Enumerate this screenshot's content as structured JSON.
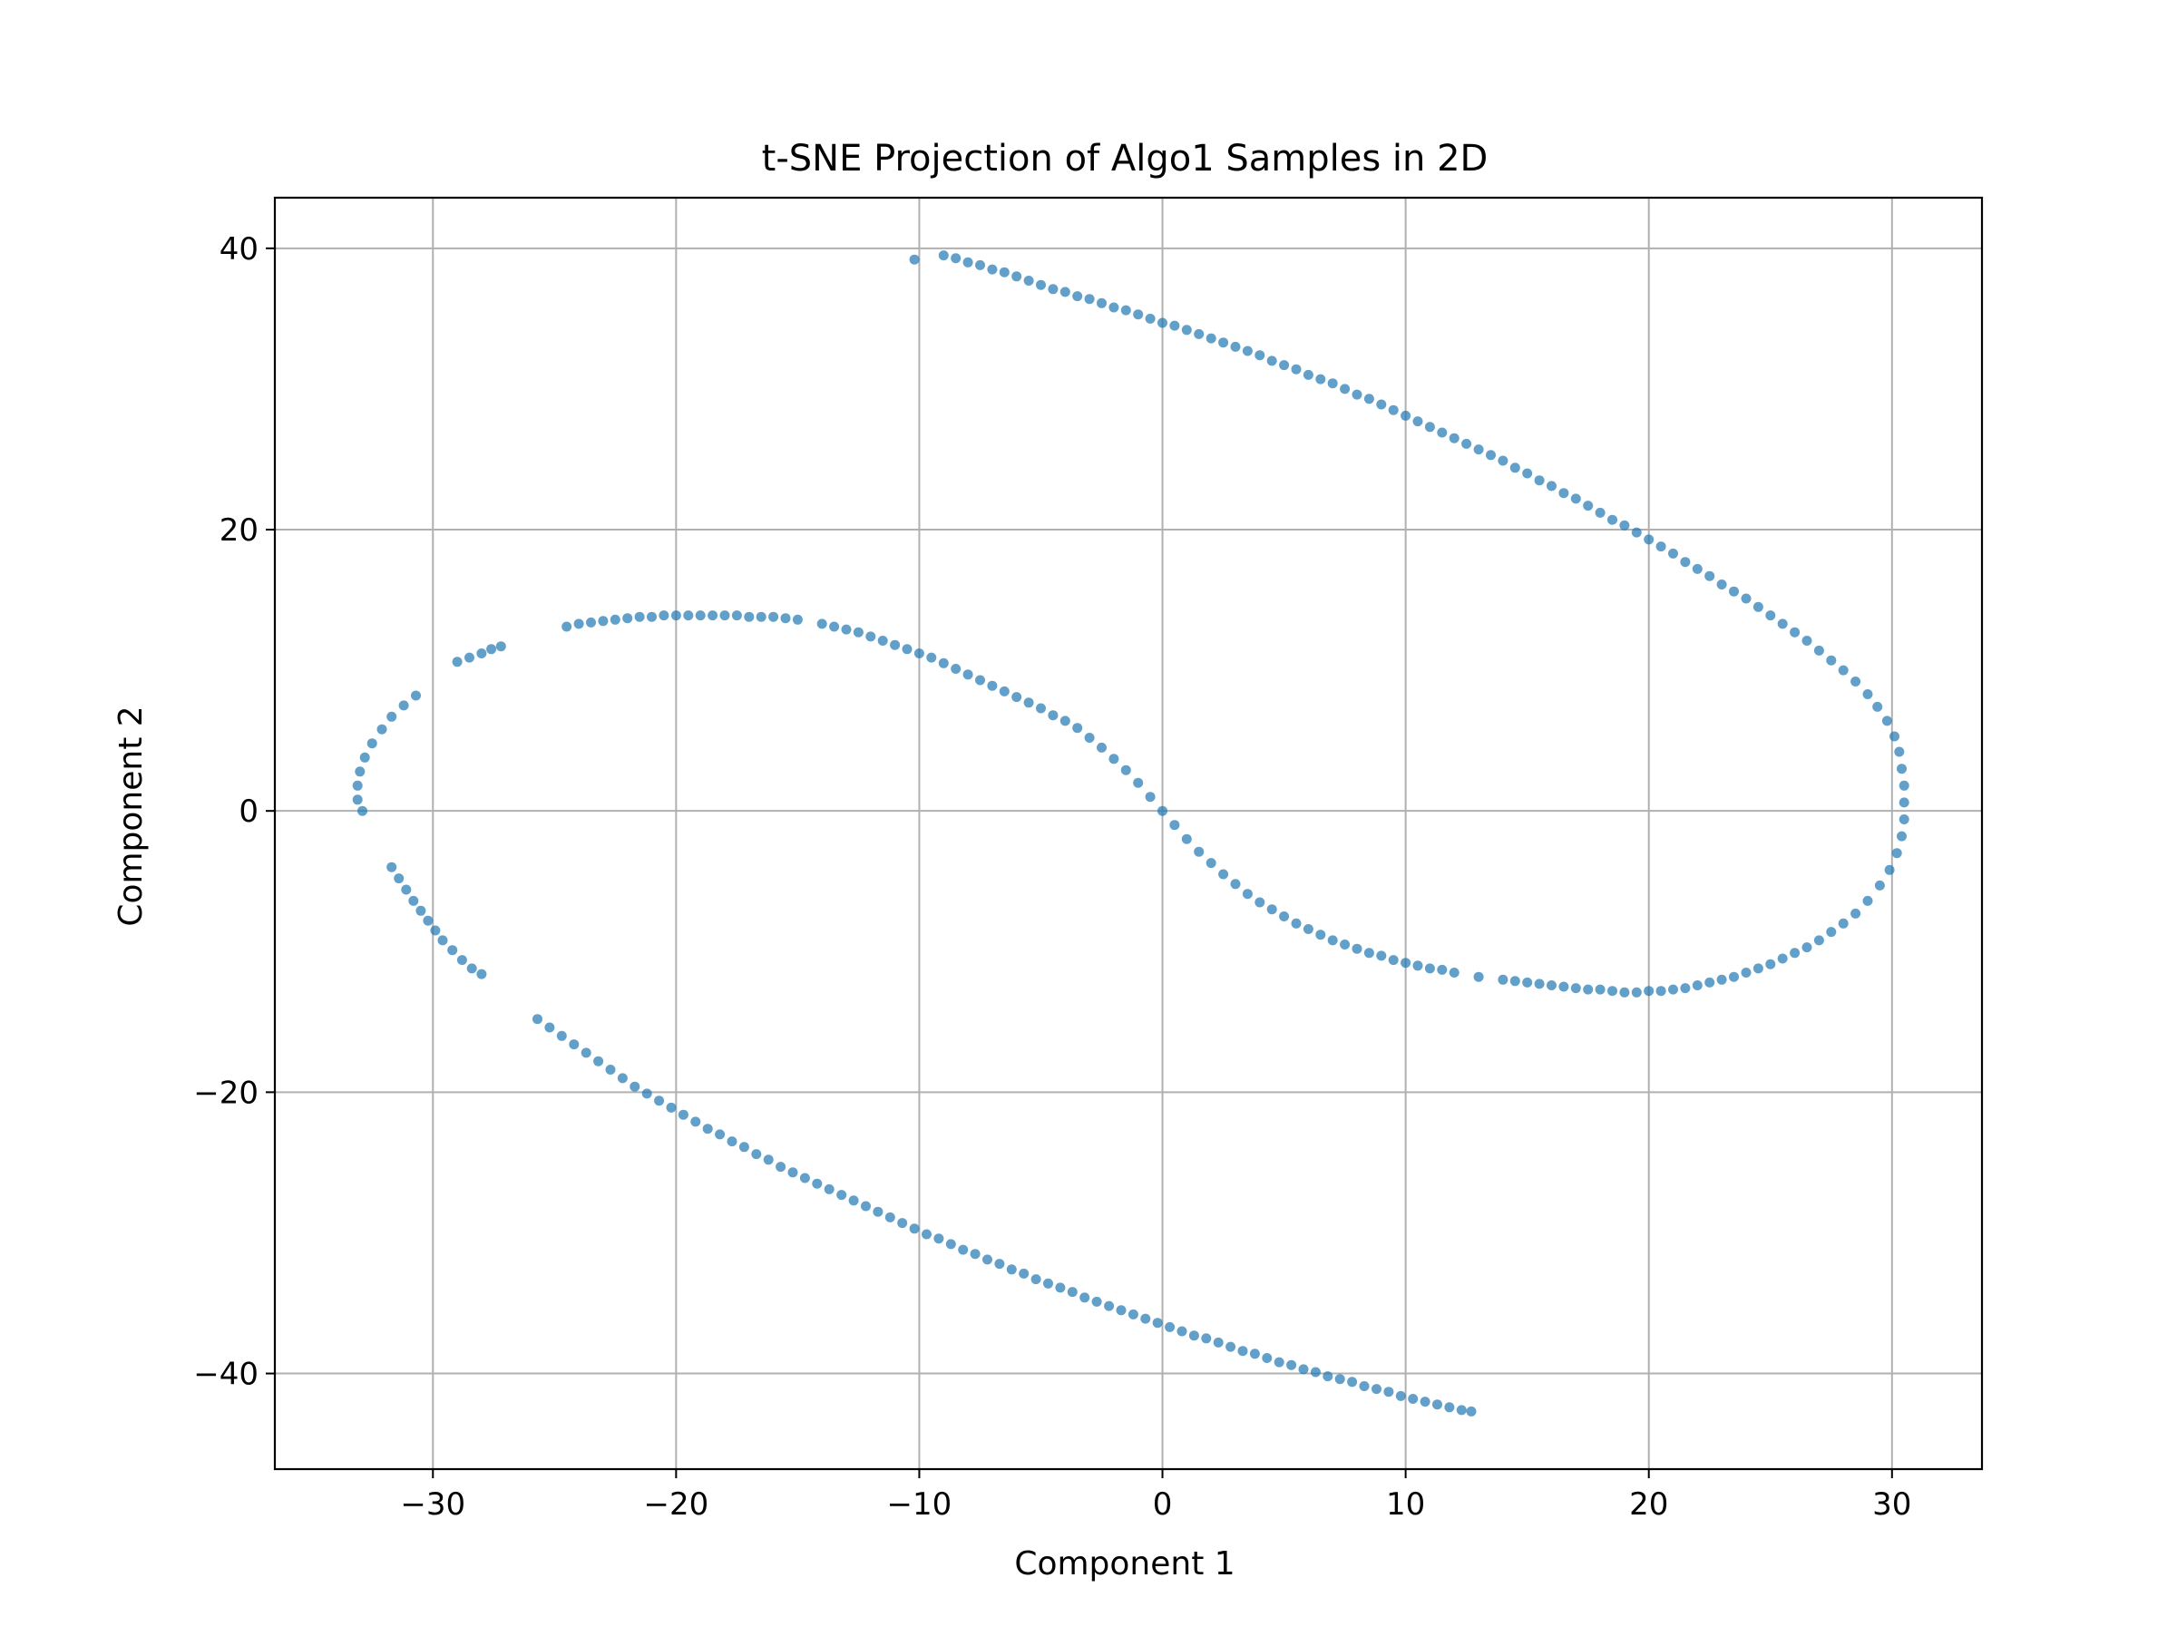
{
  "chart_data": {
    "type": "scatter",
    "title": "t-SNE Projection of Algo1 Samples in 2D",
    "xlabel": "Component 1",
    "ylabel": "Component 2",
    "xlim": [
      -36.5,
      33.7
    ],
    "ylim": [
      -46.8,
      43.6
    ],
    "xticks": [
      -30,
      -20,
      -10,
      0,
      10,
      20,
      30
    ],
    "yticks": [
      -40,
      -20,
      0,
      20,
      40
    ],
    "grid": true,
    "point_color": "#1f77b4",
    "point_alpha": 0.7,
    "series": [
      {
        "shape": "two spiral arms of a single point cloud",
        "points": [
          [
            -10.2,
            39.2
          ],
          [
            -9.0,
            39.5
          ],
          [
            -8.5,
            39.3
          ],
          [
            -8.0,
            39.0
          ],
          [
            -7.5,
            38.8
          ],
          [
            -7.0,
            38.5
          ],
          [
            -6.5,
            38.3
          ],
          [
            -6.0,
            38.0
          ],
          [
            -5.5,
            37.7
          ],
          [
            -5.0,
            37.4
          ],
          [
            -4.5,
            37.1
          ],
          [
            -4.0,
            36.9
          ],
          [
            -3.5,
            36.6
          ],
          [
            -3.0,
            36.4
          ],
          [
            -2.5,
            36.1
          ],
          [
            -2.0,
            35.8
          ],
          [
            -1.5,
            35.6
          ],
          [
            -1.0,
            35.3
          ],
          [
            -0.5,
            35.0
          ],
          [
            0.0,
            34.7
          ],
          [
            0.5,
            34.5
          ],
          [
            1.0,
            34.2
          ],
          [
            1.5,
            33.9
          ],
          [
            2.0,
            33.6
          ],
          [
            2.5,
            33.3
          ],
          [
            3.0,
            33.0
          ],
          [
            3.5,
            32.7
          ],
          [
            4.0,
            32.4
          ],
          [
            4.5,
            32.0
          ],
          [
            5.0,
            31.7
          ],
          [
            5.5,
            31.4
          ],
          [
            6.0,
            31.0
          ],
          [
            6.5,
            30.7
          ],
          [
            7.0,
            30.4
          ],
          [
            7.5,
            30.0
          ],
          [
            8.0,
            29.6
          ],
          [
            8.5,
            29.3
          ],
          [
            9.0,
            28.9
          ],
          [
            9.5,
            28.5
          ],
          [
            10.0,
            28.1
          ],
          [
            10.5,
            27.7
          ],
          [
            11.0,
            27.3
          ],
          [
            11.5,
            26.9
          ],
          [
            12.0,
            26.5
          ],
          [
            12.5,
            26.1
          ],
          [
            13.0,
            25.7
          ],
          [
            13.5,
            25.3
          ],
          [
            14.0,
            24.9
          ],
          [
            14.5,
            24.4
          ],
          [
            15.0,
            24.0
          ],
          [
            15.5,
            23.5
          ],
          [
            16.0,
            23.1
          ],
          [
            16.5,
            22.6
          ],
          [
            17.0,
            22.2
          ],
          [
            17.5,
            21.7
          ],
          [
            18.0,
            21.2
          ],
          [
            18.5,
            20.7
          ],
          [
            19.0,
            20.3
          ],
          [
            19.5,
            19.8
          ],
          [
            20.0,
            19.3
          ],
          [
            20.5,
            18.8
          ],
          [
            21.0,
            18.3
          ],
          [
            21.5,
            17.7
          ],
          [
            22.0,
            17.2
          ],
          [
            22.5,
            16.7
          ],
          [
            23.0,
            16.1
          ],
          [
            23.5,
            15.6
          ],
          [
            24.0,
            15.1
          ],
          [
            24.5,
            14.5
          ],
          [
            25.0,
            13.9
          ],
          [
            25.5,
            13.3
          ],
          [
            26.0,
            12.7
          ],
          [
            26.5,
            12.1
          ],
          [
            27.0,
            11.4
          ],
          [
            27.5,
            10.7
          ],
          [
            28.0,
            10.0
          ],
          [
            28.5,
            9.2
          ],
          [
            29.0,
            8.3
          ],
          [
            29.4,
            7.4
          ],
          [
            29.8,
            6.4
          ],
          [
            30.1,
            5.3
          ],
          [
            30.3,
            4.2
          ],
          [
            30.4,
            3.0
          ],
          [
            30.5,
            1.8
          ],
          [
            30.5,
            0.6
          ],
          [
            30.5,
            -0.6
          ],
          [
            30.4,
            -1.8
          ],
          [
            30.2,
            -3.0
          ],
          [
            29.9,
            -4.2
          ],
          [
            29.5,
            -5.3
          ],
          [
            29.0,
            -6.4
          ],
          [
            28.5,
            -7.3
          ],
          [
            28.0,
            -8.0
          ],
          [
            27.5,
            -8.6
          ],
          [
            27.0,
            -9.2
          ],
          [
            26.5,
            -9.7
          ],
          [
            26.0,
            -10.1
          ],
          [
            25.5,
            -10.5
          ],
          [
            25.0,
            -10.9
          ],
          [
            24.5,
            -11.2
          ],
          [
            24.0,
            -11.5
          ],
          [
            23.5,
            -11.8
          ],
          [
            23.0,
            -12.0
          ],
          [
            22.5,
            -12.2
          ],
          [
            22.0,
            -12.4
          ],
          [
            21.5,
            -12.6
          ],
          [
            21.0,
            -12.7
          ],
          [
            20.5,
            -12.8
          ],
          [
            20.0,
            -12.8
          ],
          [
            19.5,
            -12.9
          ],
          [
            19.0,
            -12.9
          ],
          [
            18.5,
            -12.8
          ],
          [
            18.0,
            -12.7
          ],
          [
            17.5,
            -12.7
          ],
          [
            17.0,
            -12.6
          ],
          [
            16.5,
            -12.5
          ],
          [
            16.0,
            -12.4
          ],
          [
            15.5,
            -12.3
          ],
          [
            15.0,
            -12.2
          ],
          [
            14.5,
            -12.1
          ],
          [
            14.0,
            -12.0
          ],
          [
            13.0,
            -11.8
          ],
          [
            12.0,
            -11.5
          ],
          [
            11.5,
            -11.3
          ],
          [
            11.0,
            -11.2
          ],
          [
            10.5,
            -11.0
          ],
          [
            10.0,
            -10.8
          ],
          [
            9.5,
            -10.6
          ],
          [
            9.0,
            -10.3
          ],
          [
            8.5,
            -10.1
          ],
          [
            8.0,
            -9.8
          ],
          [
            7.5,
            -9.5
          ],
          [
            7.0,
            -9.2
          ],
          [
            6.5,
            -8.8
          ],
          [
            6.0,
            -8.4
          ],
          [
            5.5,
            -8.0
          ],
          [
            5.0,
            -7.5
          ],
          [
            4.5,
            -7.0
          ],
          [
            4.0,
            -6.5
          ],
          [
            3.5,
            -5.9
          ],
          [
            3.0,
            -5.2
          ],
          [
            2.5,
            -4.5
          ],
          [
            2.0,
            -3.7
          ],
          [
            1.5,
            -2.9
          ],
          [
            1.0,
            -2.0
          ],
          [
            0.5,
            -1.0
          ],
          [
            0.0,
            0.0
          ],
          [
            -0.5,
            1.0
          ],
          [
            -1.0,
            2.0
          ],
          [
            -1.5,
            2.9
          ],
          [
            -2.0,
            3.7
          ],
          [
            -2.5,
            4.5
          ],
          [
            -3.0,
            5.2
          ],
          [
            -3.5,
            5.9
          ],
          [
            -4.0,
            6.4
          ],
          [
            -4.5,
            6.8
          ],
          [
            -5.0,
            7.3
          ],
          [
            -5.5,
            7.7
          ],
          [
            -6.0,
            8.1
          ],
          [
            -6.5,
            8.5
          ],
          [
            -7.0,
            8.9
          ],
          [
            -7.5,
            9.3
          ],
          [
            -8.0,
            9.7
          ],
          [
            -8.5,
            10.1
          ],
          [
            -9.0,
            10.5
          ],
          [
            -9.5,
            10.9
          ],
          [
            -10.0,
            11.2
          ],
          [
            -10.5,
            11.5
          ],
          [
            -11.0,
            11.8
          ],
          [
            -11.5,
            12.1
          ],
          [
            -12.0,
            12.4
          ],
          [
            -12.5,
            12.7
          ],
          [
            -13.0,
            12.9
          ],
          [
            -13.5,
            13.1
          ],
          [
            -14.0,
            13.3
          ],
          [
            -15.0,
            13.6
          ],
          [
            -15.5,
            13.7
          ],
          [
            -16.0,
            13.8
          ],
          [
            -16.5,
            13.8
          ],
          [
            -17.0,
            13.8
          ],
          [
            -17.5,
            13.9
          ],
          [
            -18.0,
            13.9
          ],
          [
            -18.5,
            13.9
          ],
          [
            -19.0,
            13.9
          ],
          [
            -19.5,
            13.9
          ],
          [
            -20.0,
            13.9
          ],
          [
            -20.5,
            13.9
          ],
          [
            -21.0,
            13.8
          ],
          [
            -21.5,
            13.8
          ],
          [
            -22.0,
            13.7
          ],
          [
            -22.5,
            13.6
          ],
          [
            -23.0,
            13.5
          ],
          [
            -23.5,
            13.4
          ],
          [
            -24.0,
            13.3
          ],
          [
            -24.5,
            13.1
          ],
          [
            -27.2,
            11.7
          ],
          [
            -27.6,
            11.5
          ],
          [
            -28.0,
            11.2
          ],
          [
            -28.5,
            10.9
          ],
          [
            -29.0,
            10.6
          ],
          [
            -30.7,
            8.2
          ],
          [
            -31.2,
            7.5
          ],
          [
            -31.7,
            6.7
          ],
          [
            -32.1,
            5.8
          ],
          [
            -32.5,
            4.8
          ],
          [
            -32.8,
            3.8
          ],
          [
            -33.0,
            2.8
          ],
          [
            -33.1,
            1.8
          ],
          [
            -33.1,
            0.8
          ],
          [
            -32.9,
            0.0
          ],
          [
            -31.7,
            -4.0
          ],
          [
            -31.4,
            -4.8
          ],
          [
            -31.1,
            -5.6
          ],
          [
            -30.8,
            -6.4
          ],
          [
            -30.5,
            -7.1
          ],
          [
            -30.2,
            -7.8
          ],
          [
            -29.9,
            -8.5
          ],
          [
            -29.6,
            -9.2
          ],
          [
            -29.2,
            -9.9
          ],
          [
            -28.8,
            -10.6
          ],
          [
            -28.4,
            -11.2
          ],
          [
            -28.0,
            -11.6
          ],
          [
            -25.7,
            -14.8
          ],
          [
            -25.2,
            -15.4
          ],
          [
            -24.7,
            -16.0
          ],
          [
            -24.2,
            -16.6
          ],
          [
            -23.7,
            -17.2
          ],
          [
            -23.2,
            -17.8
          ],
          [
            -22.7,
            -18.4
          ],
          [
            -22.2,
            -19.0
          ],
          [
            -21.7,
            -19.6
          ],
          [
            -21.2,
            -20.1
          ],
          [
            -20.7,
            -20.6
          ],
          [
            -20.2,
            -21.1
          ],
          [
            -19.7,
            -21.6
          ],
          [
            -19.2,
            -22.1
          ],
          [
            -18.7,
            -22.6
          ],
          [
            -18.2,
            -23.0
          ],
          [
            -17.7,
            -23.5
          ],
          [
            -17.2,
            -23.9
          ],
          [
            -16.7,
            -24.4
          ],
          [
            -16.2,
            -24.8
          ],
          [
            -15.7,
            -25.3
          ],
          [
            -15.2,
            -25.7
          ],
          [
            -14.7,
            -26.1
          ],
          [
            -14.2,
            -26.5
          ],
          [
            -13.7,
            -26.9
          ],
          [
            -13.2,
            -27.3
          ],
          [
            -12.7,
            -27.7
          ],
          [
            -12.2,
            -28.1
          ],
          [
            -11.7,
            -28.5
          ],
          [
            -11.2,
            -28.9
          ],
          [
            -10.7,
            -29.3
          ],
          [
            -10.2,
            -29.7
          ],
          [
            -9.7,
            -30.1
          ],
          [
            -9.2,
            -30.4
          ],
          [
            -8.7,
            -30.8
          ],
          [
            -8.2,
            -31.2
          ],
          [
            -7.7,
            -31.5
          ],
          [
            -7.2,
            -31.9
          ],
          [
            -6.7,
            -32.2
          ],
          [
            -6.2,
            -32.6
          ],
          [
            -5.7,
            -32.9
          ],
          [
            -5.2,
            -33.3
          ],
          [
            -4.7,
            -33.6
          ],
          [
            -4.2,
            -33.9
          ],
          [
            -3.7,
            -34.2
          ],
          [
            -3.2,
            -34.6
          ],
          [
            -2.7,
            -34.9
          ],
          [
            -2.2,
            -35.2
          ],
          [
            -1.7,
            -35.5
          ],
          [
            -1.2,
            -35.8
          ],
          [
            -0.7,
            -36.1
          ],
          [
            -0.2,
            -36.4
          ],
          [
            0.3,
            -36.7
          ],
          [
            0.8,
            -37.0
          ],
          [
            1.3,
            -37.3
          ],
          [
            1.8,
            -37.5
          ],
          [
            2.3,
            -37.8
          ],
          [
            2.8,
            -38.1
          ],
          [
            3.3,
            -38.4
          ],
          [
            3.8,
            -38.6
          ],
          [
            4.3,
            -38.9
          ],
          [
            4.8,
            -39.2
          ],
          [
            5.3,
            -39.4
          ],
          [
            5.8,
            -39.7
          ],
          [
            6.3,
            -39.9
          ],
          [
            6.8,
            -40.2
          ],
          [
            7.3,
            -40.4
          ],
          [
            7.8,
            -40.6
          ],
          [
            8.3,
            -40.9
          ],
          [
            8.8,
            -41.1
          ],
          [
            9.3,
            -41.3
          ],
          [
            9.8,
            -41.6
          ],
          [
            10.3,
            -41.8
          ],
          [
            10.8,
            -42.0
          ],
          [
            11.3,
            -42.2
          ],
          [
            11.8,
            -42.4
          ],
          [
            12.3,
            -42.6
          ],
          [
            12.7,
            -42.7
          ]
        ]
      }
    ]
  }
}
